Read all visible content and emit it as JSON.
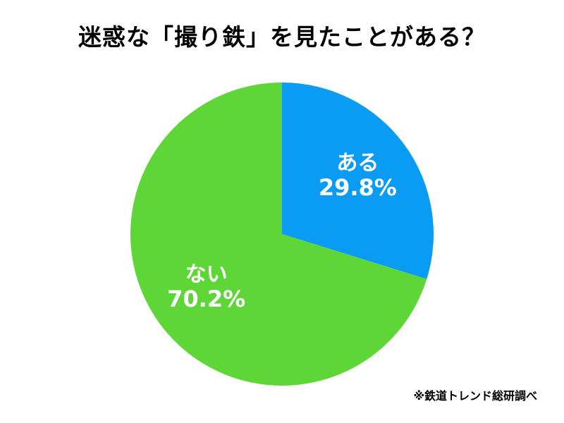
{
  "title": "迷惑な「撮り鉄」を見たことがある？",
  "source": "※鉄道トレンド総研調べ",
  "chart_data": {
    "type": "pie",
    "title": "迷惑な「撮り鉄」を見たことがある？",
    "slices": [
      {
        "label": "ある",
        "value": 29.8,
        "value_label": "29.8%",
        "color": "#0A9BF5"
      },
      {
        "label": "ない",
        "value": 70.2,
        "value_label": "70.2%",
        "color": "#5ED638"
      }
    ],
    "start": "12 o'clock",
    "direction": "clockwise",
    "legend": "none"
  }
}
